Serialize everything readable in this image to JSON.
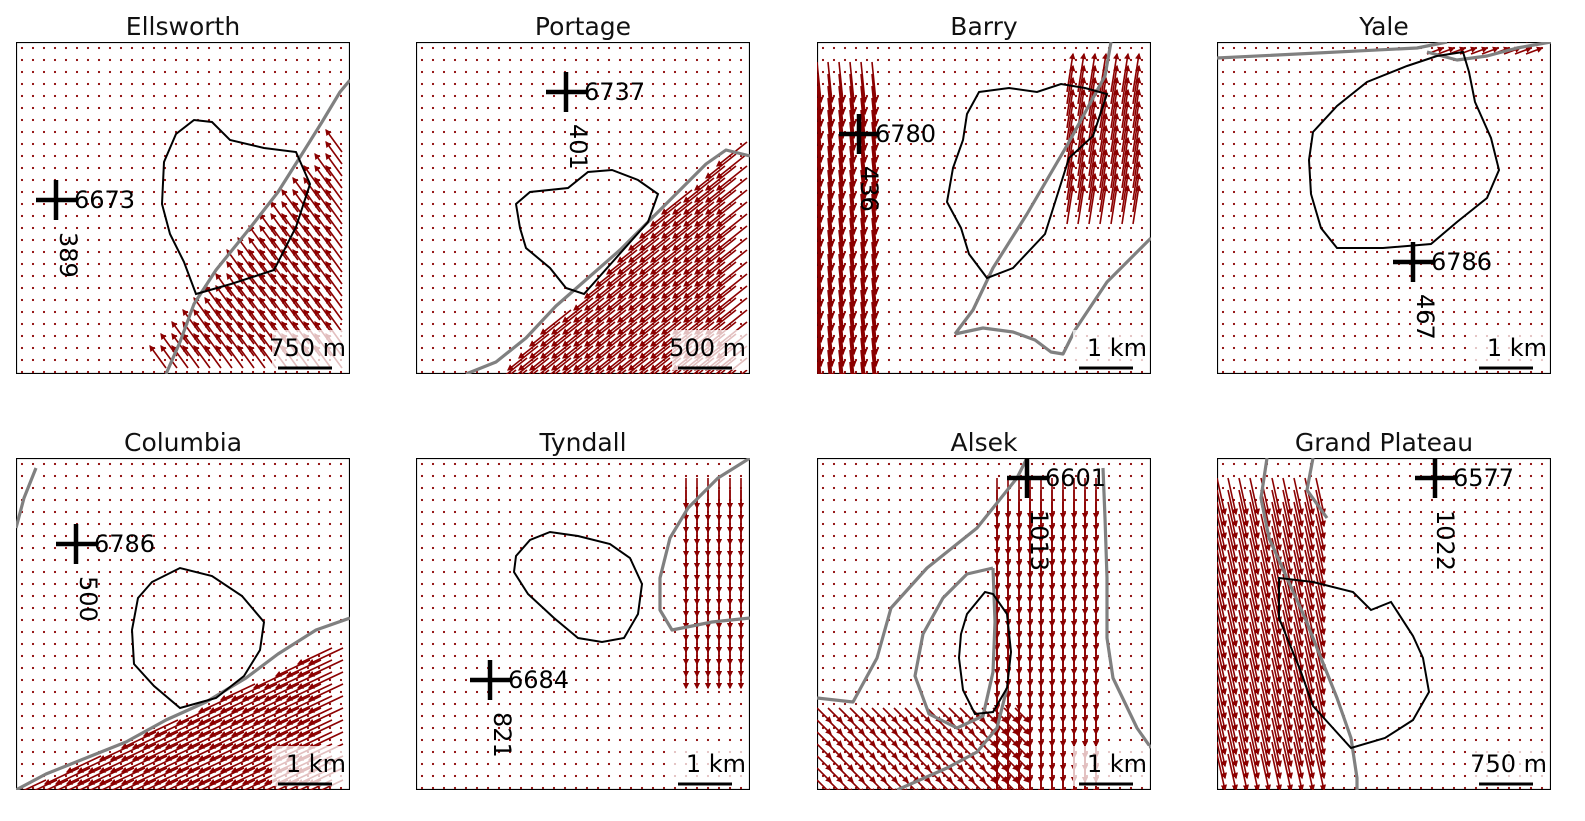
{
  "figure": {
    "arrow_color": "#8b0000",
    "outline_color": "#000000",
    "contour_color": "#808080"
  },
  "panels": [
    {
      "title": "Ellsworth",
      "scale_label": "750 m",
      "marker": {
        "code": "6673",
        "value": "389"
      }
    },
    {
      "title": "Portage",
      "scale_label": "500 m",
      "marker": {
        "code": "6737",
        "value": "401"
      }
    },
    {
      "title": "Barry",
      "scale_label": "1 km",
      "marker": {
        "code": "6780",
        "value": "436"
      }
    },
    {
      "title": "Yale",
      "scale_label": "1 km",
      "marker": {
        "code": "6786",
        "value": "467"
      }
    },
    {
      "title": "Columbia",
      "scale_label": "1 km",
      "marker": {
        "code": "6786",
        "value": "500"
      }
    },
    {
      "title": "Tyndall",
      "scale_label": "1 km",
      "marker": {
        "code": "6684",
        "value": "821"
      }
    },
    {
      "title": "Alsek",
      "scale_label": "1 km",
      "marker": {
        "code": "6601",
        "value": "1013"
      }
    },
    {
      "title": "Grand Plateau",
      "scale_label": "750 m",
      "marker": {
        "code": "6577",
        "value": "1022"
      }
    }
  ]
}
